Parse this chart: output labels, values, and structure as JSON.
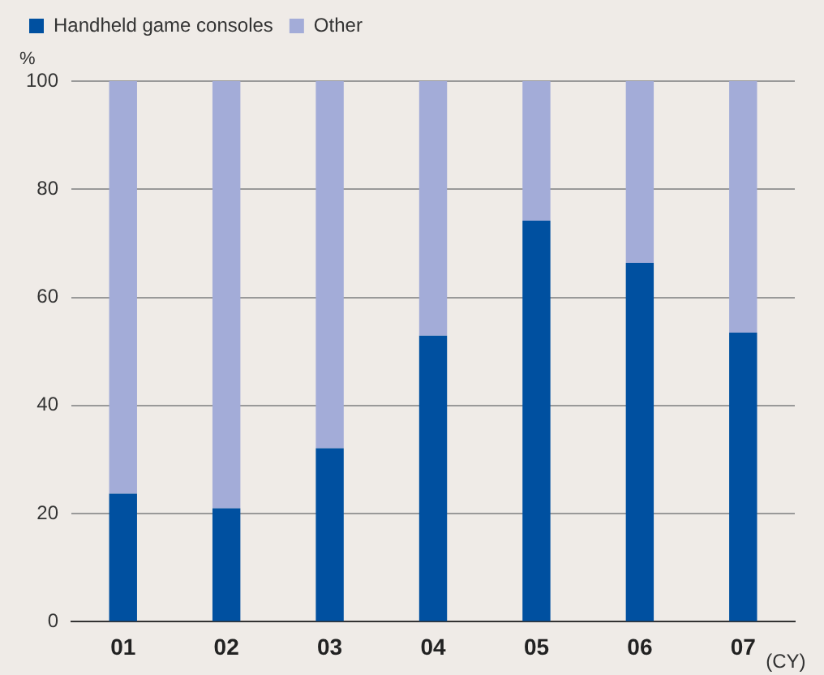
{
  "chart_data": {
    "type": "bar",
    "stacked": true,
    "ylabel": "%",
    "xlabel": "(CY)",
    "categories": [
      "01",
      "02",
      "03",
      "04",
      "05",
      "06",
      "07"
    ],
    "series": [
      {
        "name": "Handheld game consoles",
        "color": "#0050a0",
        "values": [
          23.7,
          21,
          32.1,
          52.9,
          74.2,
          66.4,
          53.5
        ]
      },
      {
        "name": "Other",
        "color": "#a3acd8",
        "values": [
          76.3,
          79,
          67.9,
          47.1,
          25.8,
          33.6,
          46.5
        ]
      }
    ],
    "ylim": [
      0,
      100
    ],
    "yticks": [
      0,
      20,
      40,
      60,
      80,
      100
    ],
    "grid": "y",
    "legend": "top left"
  }
}
